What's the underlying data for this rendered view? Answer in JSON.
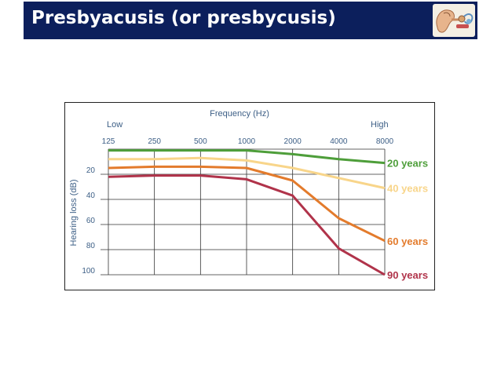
{
  "header": {
    "title": "Presbyacusis (or presbycusis)",
    "icon": "ear-anatomy-icon",
    "bar_color": "#0c1f5c"
  },
  "chart_data": {
    "type": "line",
    "title": "Frequency (Hz)",
    "xlabel": "Frequency (Hz)",
    "ylabel": "Hearing loss (dB)",
    "x_low_label": "Low",
    "x_high_label": "High",
    "x": [
      "125",
      "250",
      "500",
      "1000",
      "2000",
      "4000",
      "8000"
    ],
    "y_ticks": [
      "20",
      "40",
      "60",
      "80",
      "100"
    ],
    "ylim": [
      0,
      100
    ],
    "grid": true,
    "series": [
      {
        "name": "20 years",
        "color": "#4e9e3a",
        "values": [
          1,
          1,
          1,
          1,
          4,
          8,
          11
        ]
      },
      {
        "name": "40 years",
        "color": "#f8d58a",
        "values": [
          8,
          8,
          7,
          9,
          15,
          23,
          31
        ]
      },
      {
        "name": "60 years",
        "color": "#e37b2c",
        "values": [
          15,
          14,
          14,
          15,
          25,
          55,
          73
        ]
      },
      {
        "name": "90 years",
        "color": "#b0334a",
        "values": [
          22,
          21,
          21,
          24,
          37,
          79,
          100
        ]
      }
    ]
  }
}
